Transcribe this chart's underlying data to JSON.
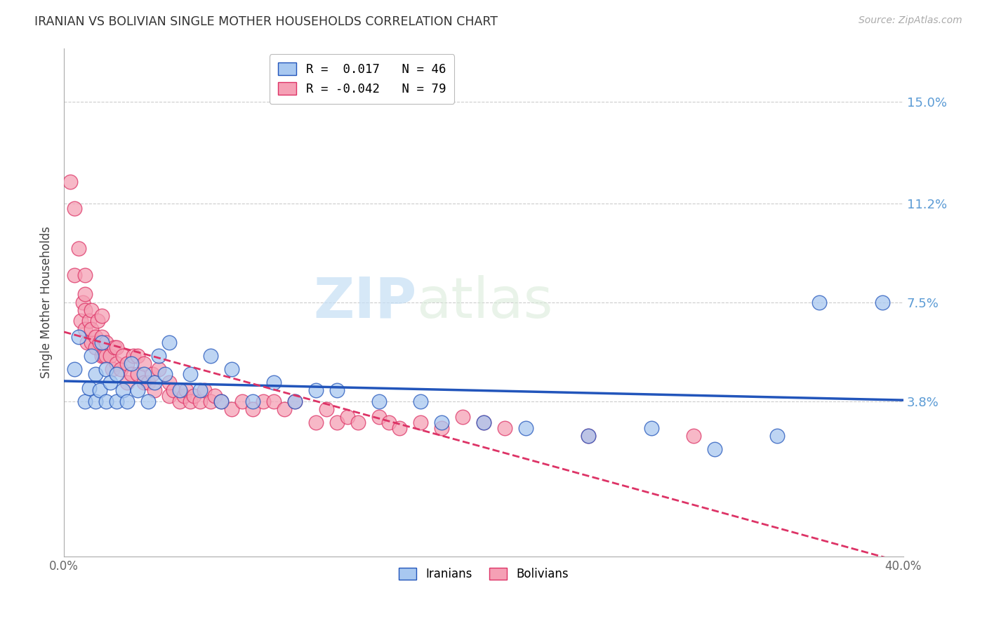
{
  "title": "IRANIAN VS BOLIVIAN SINGLE MOTHER HOUSEHOLDS CORRELATION CHART",
  "source": "Source: ZipAtlas.com",
  "ylabel": "Single Mother Households",
  "ytick_labels": [
    "3.8%",
    "7.5%",
    "11.2%",
    "15.0%"
  ],
  "ytick_values": [
    0.038,
    0.075,
    0.112,
    0.15
  ],
  "xlim": [
    0.0,
    0.4
  ],
  "ylim": [
    -0.02,
    0.17
  ],
  "color_iranian": "#a8c8f0",
  "color_bolivian": "#f5a0b5",
  "line_color_iranian": "#2255bb",
  "line_color_bolivian": "#dd3366",
  "watermark_zip": "ZIP",
  "watermark_atlas": "atlas",
  "iranian_x": [
    0.005,
    0.007,
    0.01,
    0.012,
    0.013,
    0.015,
    0.015,
    0.017,
    0.018,
    0.02,
    0.02,
    0.022,
    0.025,
    0.025,
    0.028,
    0.03,
    0.032,
    0.035,
    0.038,
    0.04,
    0.043,
    0.045,
    0.048,
    0.05,
    0.055,
    0.06,
    0.065,
    0.07,
    0.075,
    0.08,
    0.09,
    0.1,
    0.11,
    0.12,
    0.13,
    0.15,
    0.17,
    0.18,
    0.2,
    0.22,
    0.25,
    0.28,
    0.31,
    0.34,
    0.36,
    0.39
  ],
  "iranian_y": [
    0.05,
    0.062,
    0.038,
    0.043,
    0.055,
    0.038,
    0.048,
    0.042,
    0.06,
    0.038,
    0.05,
    0.045,
    0.038,
    0.048,
    0.042,
    0.038,
    0.052,
    0.042,
    0.048,
    0.038,
    0.045,
    0.055,
    0.048,
    0.06,
    0.042,
    0.048,
    0.042,
    0.055,
    0.038,
    0.05,
    0.038,
    0.045,
    0.038,
    0.042,
    0.042,
    0.038,
    0.038,
    0.03,
    0.03,
    0.028,
    0.025,
    0.028,
    0.02,
    0.025,
    0.075,
    0.075
  ],
  "bolivian_x": [
    0.003,
    0.005,
    0.005,
    0.007,
    0.008,
    0.009,
    0.01,
    0.01,
    0.01,
    0.01,
    0.011,
    0.012,
    0.013,
    0.013,
    0.013,
    0.015,
    0.015,
    0.016,
    0.017,
    0.018,
    0.018,
    0.018,
    0.019,
    0.02,
    0.02,
    0.022,
    0.023,
    0.024,
    0.025,
    0.025,
    0.027,
    0.028,
    0.03,
    0.03,
    0.032,
    0.033,
    0.035,
    0.035,
    0.038,
    0.038,
    0.04,
    0.042,
    0.043,
    0.045,
    0.05,
    0.05,
    0.052,
    0.055,
    0.057,
    0.058,
    0.06,
    0.062,
    0.065,
    0.067,
    0.07,
    0.072,
    0.075,
    0.08,
    0.085,
    0.09,
    0.095,
    0.1,
    0.105,
    0.11,
    0.12,
    0.125,
    0.13,
    0.135,
    0.14,
    0.15,
    0.155,
    0.16,
    0.17,
    0.18,
    0.19,
    0.2,
    0.21,
    0.25,
    0.3
  ],
  "bolivian_y": [
    0.12,
    0.11,
    0.085,
    0.095,
    0.068,
    0.075,
    0.065,
    0.072,
    0.078,
    0.085,
    0.06,
    0.068,
    0.06,
    0.065,
    0.072,
    0.058,
    0.062,
    0.068,
    0.06,
    0.055,
    0.062,
    0.07,
    0.055,
    0.055,
    0.06,
    0.055,
    0.05,
    0.058,
    0.052,
    0.058,
    0.05,
    0.055,
    0.045,
    0.052,
    0.048,
    0.055,
    0.048,
    0.055,
    0.045,
    0.052,
    0.045,
    0.048,
    0.042,
    0.05,
    0.04,
    0.045,
    0.042,
    0.038,
    0.04,
    0.042,
    0.038,
    0.04,
    0.038,
    0.042,
    0.038,
    0.04,
    0.038,
    0.035,
    0.038,
    0.035,
    0.038,
    0.038,
    0.035,
    0.038,
    0.03,
    0.035,
    0.03,
    0.032,
    0.03,
    0.032,
    0.03,
    0.028,
    0.03,
    0.028,
    0.032,
    0.03,
    0.028,
    0.025,
    0.025
  ]
}
